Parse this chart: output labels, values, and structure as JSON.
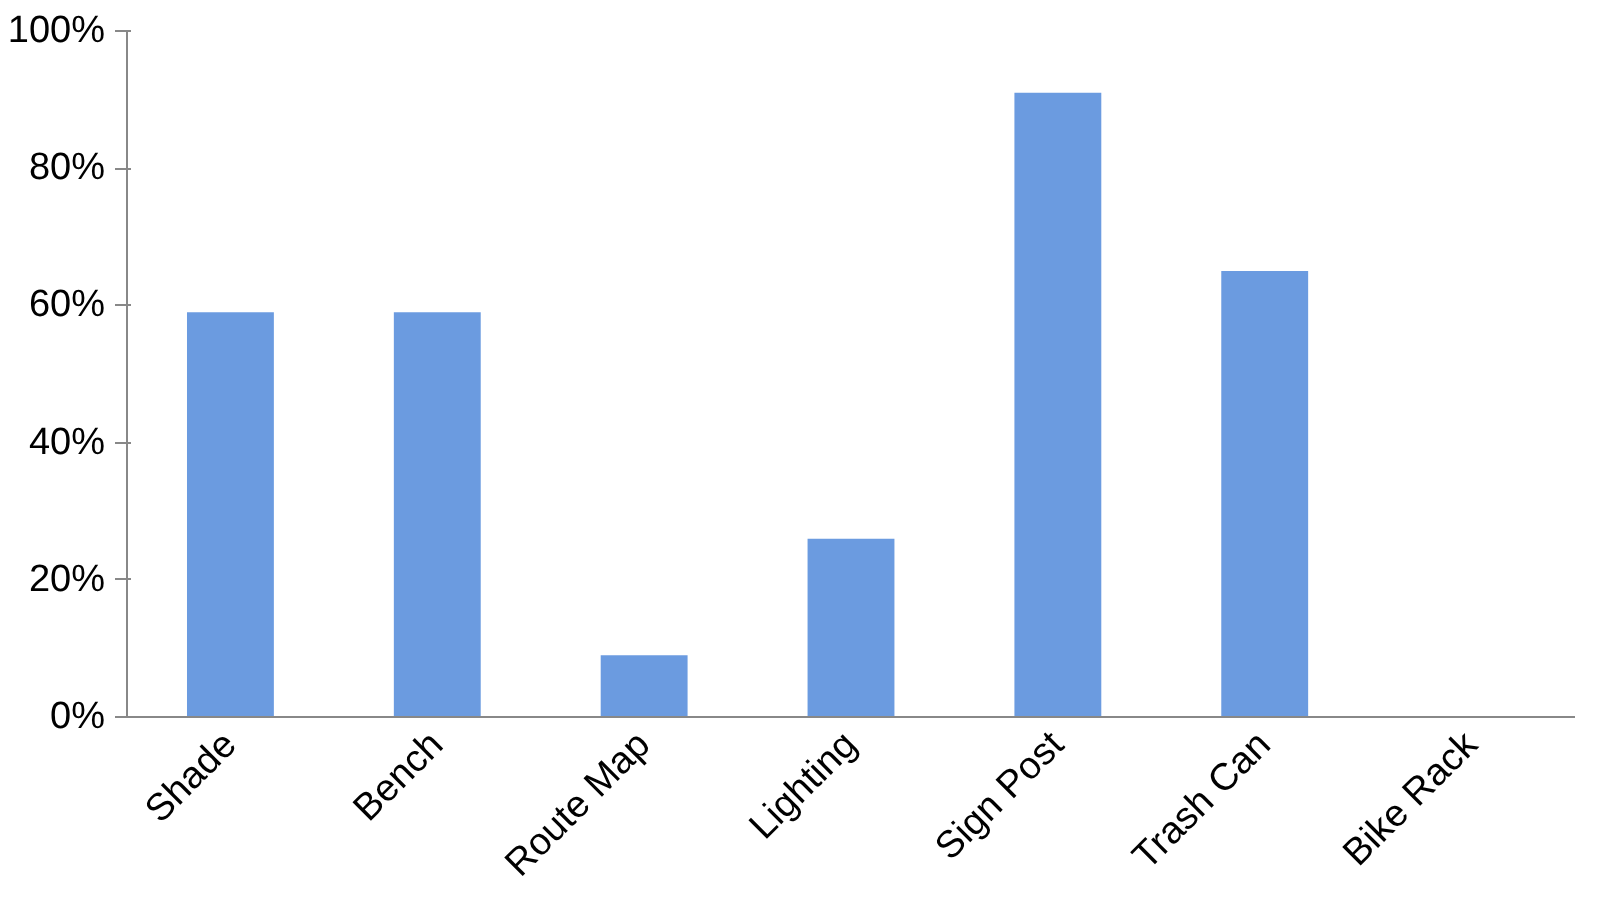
{
  "chart_data": {
    "type": "bar",
    "categories": [
      "Shade",
      "Bench",
      "Route Map",
      "Lighting",
      "Sign Post",
      "Trash Can",
      "Bike Rack"
    ],
    "values": [
      59,
      59,
      9,
      26,
      91,
      65,
      0
    ],
    "color": "#6b9be0",
    "ylim": [
      0,
      100
    ],
    "yticks": [
      {
        "value": 0,
        "label": "0%"
      },
      {
        "value": 20,
        "label": "20%"
      },
      {
        "value": 40,
        "label": "40%"
      },
      {
        "value": 60,
        "label": "60%"
      },
      {
        "value": 80,
        "label": "80%"
      },
      {
        "value": 100,
        "label": "100%"
      }
    ],
    "grid": false
  }
}
